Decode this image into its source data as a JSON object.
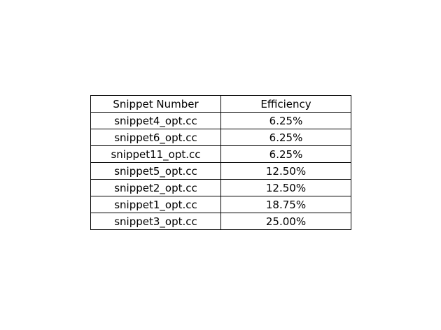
{
  "chart_data": {
    "type": "table",
    "columns": [
      "Snippet Number",
      "Efficiency"
    ],
    "rows": [
      [
        "snippet4_opt.cc",
        "6.25%"
      ],
      [
        "snippet6_opt.cc",
        "6.25%"
      ],
      [
        "snippet11_opt.cc",
        "6.25%"
      ],
      [
        "snippet5_opt.cc",
        "12.50%"
      ],
      [
        "snippet2_opt.cc",
        "12.50%"
      ],
      [
        "snippet1_opt.cc",
        "18.75%"
      ],
      [
        "snippet3_opt.cc",
        "25.00%"
      ]
    ],
    "border_color": "#000000",
    "background_color": "#ffffff"
  }
}
